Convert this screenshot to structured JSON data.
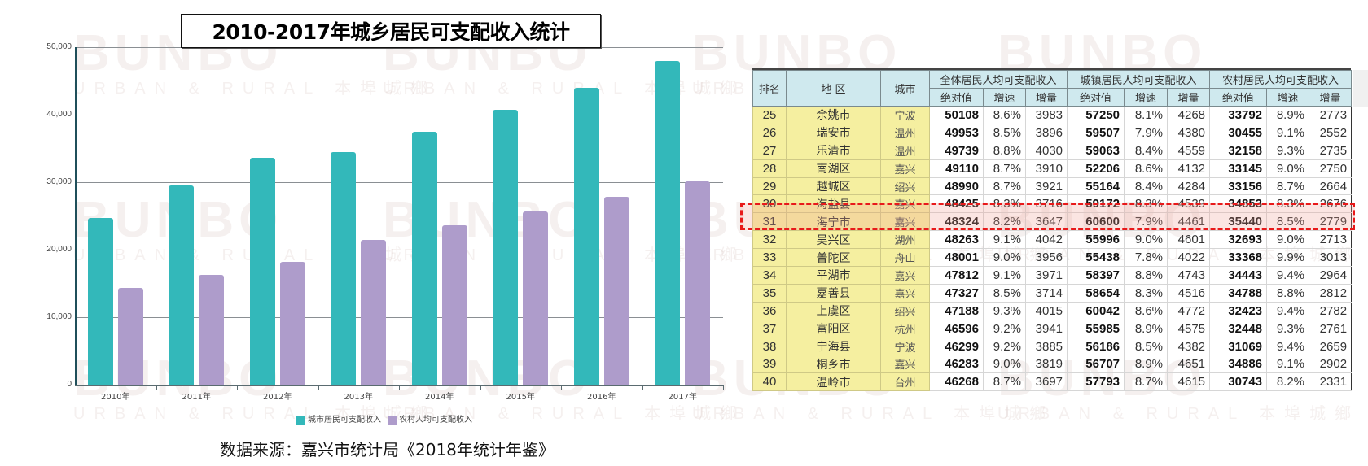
{
  "chart_title": "2010-2017年城乡居民可支配收入统计",
  "source_note": "数据来源：嘉兴市统计局《2018年统计年鉴》",
  "watermark": {
    "brand": "BUNBO",
    "tagline": "URBAN & RURAL 本埠城鄉"
  },
  "colors": {
    "urban": "#33b8ba",
    "rural": "#ae9ccb",
    "highlight": "#e8191a",
    "table_header": "#cfe9ee",
    "table_left": "#f5efa0"
  },
  "chart_data": {
    "type": "bar",
    "title": "2010-2017年城乡居民可支配收入统计",
    "xlabel": "",
    "ylabel": "",
    "ylim": [
      0,
      50000
    ],
    "yticks": [
      "0",
      "10,000",
      "20,000",
      "30,000",
      "40,000",
      "50,000"
    ],
    "grid": true,
    "legend_position": "bottom",
    "categories": [
      "2010年",
      "2011年",
      "2012年",
      "2013年",
      "2014年",
      "2015年",
      "2016年",
      "2017年"
    ],
    "series": [
      {
        "name": "城市居民可支配收入",
        "color": "#33b8ba",
        "values": [
          24700,
          29500,
          33600,
          34500,
          37500,
          40700,
          44000,
          47900
        ]
      },
      {
        "name": "农村人均可支配收入",
        "color": "#ae9ccb",
        "values": [
          14300,
          16300,
          18200,
          21500,
          23600,
          25700,
          27800,
          30100
        ]
      }
    ]
  },
  "table": {
    "headers": {
      "rank": "排名",
      "region": "地 区",
      "city": "城市",
      "groups": [
        "全体居民人均可支配收入",
        "城镇居民人均可支配收入",
        "农村居民人均可支配收入"
      ],
      "sub": [
        "绝对值",
        "增速",
        "增量"
      ]
    },
    "highlight_rank": "31",
    "rows": [
      [
        "25",
        "余姚市",
        "宁波",
        "50108",
        "8.6%",
        "3983",
        "57250",
        "8.1%",
        "4268",
        "33792",
        "8.9%",
        "2773"
      ],
      [
        "26",
        "瑞安市",
        "温州",
        "49953",
        "8.5%",
        "3896",
        "59507",
        "7.9%",
        "4380",
        "30455",
        "9.1%",
        "2552"
      ],
      [
        "27",
        "乐清市",
        "温州",
        "49739",
        "8.8%",
        "4030",
        "59063",
        "8.4%",
        "4559",
        "32158",
        "9.3%",
        "2735"
      ],
      [
        "28",
        "南湖区",
        "嘉兴",
        "49110",
        "8.7%",
        "3910",
        "52206",
        "8.6%",
        "4132",
        "33145",
        "9.0%",
        "2750"
      ],
      [
        "29",
        "越城区",
        "绍兴",
        "48990",
        "8.7%",
        "3921",
        "55164",
        "8.4%",
        "4284",
        "33156",
        "8.7%",
        "2664"
      ],
      [
        "30",
        "海盐县",
        "嘉兴",
        "48425",
        "8.3%",
        "3716",
        "59172",
        "8.3%",
        "4539",
        "34853",
        "8.3%",
        "2676"
      ],
      [
        "31",
        "海宁市",
        "嘉兴",
        "48324",
        "8.2%",
        "3647",
        "60600",
        "7.9%",
        "4461",
        "35440",
        "8.5%",
        "2779"
      ],
      [
        "32",
        "吴兴区",
        "湖州",
        "48263",
        "9.1%",
        "4042",
        "55996",
        "9.0%",
        "4601",
        "32693",
        "9.0%",
        "2713"
      ],
      [
        "33",
        "普陀区",
        "舟山",
        "48001",
        "9.0%",
        "3956",
        "55438",
        "7.8%",
        "4022",
        "33368",
        "9.9%",
        "3013"
      ],
      [
        "34",
        "平湖市",
        "嘉兴",
        "47812",
        "9.1%",
        "3971",
        "58397",
        "8.8%",
        "4743",
        "34443",
        "9.4%",
        "2964"
      ],
      [
        "35",
        "嘉善县",
        "嘉兴",
        "47327",
        "8.5%",
        "3714",
        "58654",
        "8.3%",
        "4516",
        "34788",
        "8.8%",
        "2812"
      ],
      [
        "36",
        "上虞区",
        "绍兴",
        "47188",
        "9.3%",
        "4015",
        "60042",
        "8.6%",
        "4772",
        "32423",
        "9.4%",
        "2782"
      ],
      [
        "37",
        "富阳区",
        "杭州",
        "46596",
        "9.2%",
        "3941",
        "55985",
        "8.9%",
        "4575",
        "32448",
        "9.3%",
        "2761"
      ],
      [
        "38",
        "宁海县",
        "宁波",
        "46299",
        "9.2%",
        "3885",
        "56186",
        "8.5%",
        "4382",
        "31069",
        "9.4%",
        "2659"
      ],
      [
        "39",
        "桐乡市",
        "嘉兴",
        "46283",
        "9.0%",
        "3819",
        "56707",
        "8.9%",
        "4651",
        "34886",
        "9.1%",
        "2902"
      ],
      [
        "40",
        "温岭市",
        "台州",
        "46268",
        "8.7%",
        "3697",
        "57793",
        "8.7%",
        "4615",
        "30743",
        "8.2%",
        "2331"
      ]
    ]
  }
}
